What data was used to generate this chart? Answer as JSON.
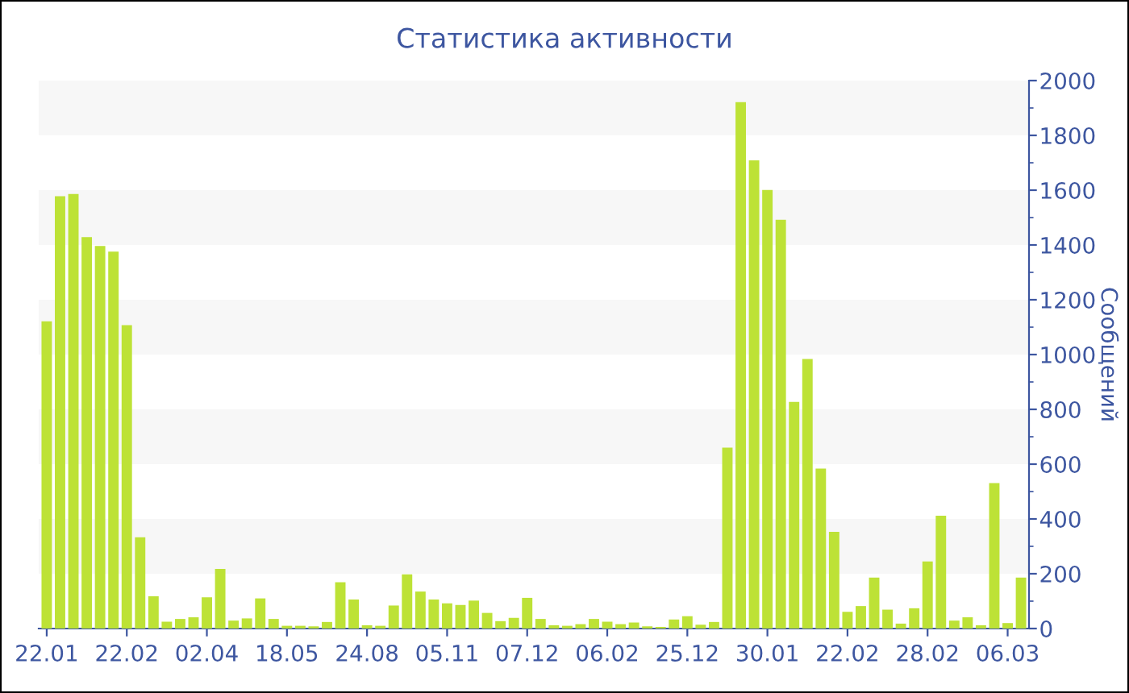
{
  "chart_data": {
    "type": "bar",
    "title": "Статистика активности",
    "ylabel": "Сообщений",
    "categories": [
      "22.01",
      null,
      null,
      null,
      null,
      null,
      "22.02",
      null,
      null,
      null,
      null,
      null,
      "02.04",
      null,
      null,
      null,
      null,
      null,
      "18.05",
      null,
      null,
      null,
      null,
      null,
      "24.08",
      null,
      null,
      null,
      null,
      null,
      "05.11",
      null,
      null,
      null,
      null,
      null,
      "07.12",
      null,
      null,
      null,
      null,
      null,
      "06.02",
      null,
      null,
      null,
      null,
      null,
      "25.12",
      null,
      null,
      null,
      null,
      null,
      "30.01",
      null,
      null,
      null,
      null,
      null,
      "22.02",
      null,
      null,
      null,
      null,
      null,
      "28.02",
      null,
      null,
      null,
      null,
      null,
      "06.03",
      null
    ],
    "values": [
      1121,
      1578,
      1586,
      1429,
      1396,
      1376,
      1107,
      333,
      118,
      25,
      35,
      41,
      114,
      218,
      29,
      37,
      110,
      35,
      10,
      10,
      8,
      24,
      169,
      106,
      12,
      10,
      84,
      198,
      135,
      106,
      92,
      86,
      102,
      57,
      27,
      39,
      112,
      35,
      12,
      10,
      16,
      35,
      25,
      16,
      22,
      8,
      6,
      33,
      45,
      14,
      24,
      660,
      1921,
      1709,
      1601,
      1492,
      827,
      984,
      584,
      353,
      61,
      82,
      186,
      69,
      18,
      74,
      245,
      412,
      29,
      41,
      12,
      531,
      20,
      186
    ],
    "color": "#bde236",
    "ylim": [
      0,
      2000
    ],
    "yticks": [
      0,
      200,
      400,
      600,
      800,
      1000,
      1200,
      1400,
      1600,
      1800,
      2000
    ],
    "bands": [
      {
        "axis": "y",
        "from": 200,
        "to": 400,
        "color": "#f7f7f7"
      },
      {
        "axis": "y",
        "from": 600,
        "to": 800,
        "color": "#f7f7f7"
      },
      {
        "axis": "y",
        "from": 1000,
        "to": 1200,
        "color": "#f7f7f7"
      },
      {
        "axis": "y",
        "from": 1400,
        "to": 1600,
        "color": "#f7f7f7"
      },
      {
        "axis": "y",
        "from": 1800,
        "to": 2000,
        "color": "#f7f7f7"
      }
    ]
  }
}
